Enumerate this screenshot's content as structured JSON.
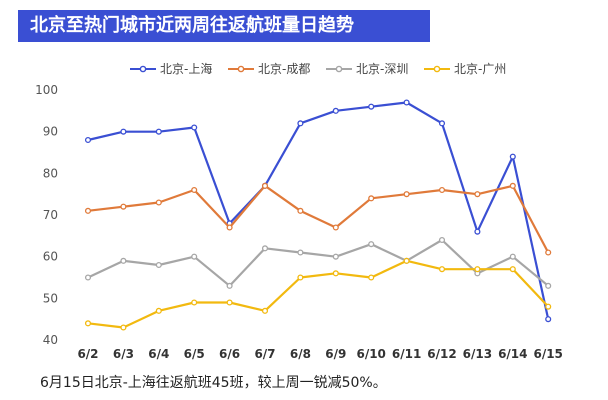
{
  "header": {
    "title": "北京至热门城市近两周往返航班量日趋势"
  },
  "chart_data": {
    "type": "line",
    "categories": [
      "6/2",
      "6/3",
      "6/4",
      "6/5",
      "6/6",
      "6/7",
      "6/8",
      "6/9",
      "6/10",
      "6/11",
      "6/12",
      "6/13",
      "6/14",
      "6/15"
    ],
    "ylim": [
      40,
      100
    ],
    "yticks": [
      40,
      50,
      60,
      70,
      80,
      90,
      100
    ],
    "grid": false,
    "legend_position": "top",
    "series": [
      {
        "name": "北京-上海",
        "color": "#3a4fd3",
        "values": [
          88,
          90,
          90,
          91,
          68,
          77,
          92,
          95,
          96,
          97,
          92,
          66,
          84,
          45
        ]
      },
      {
        "name": "北京-成都",
        "color": "#e07a3a",
        "values": [
          71,
          72,
          73,
          76,
          67,
          77,
          71,
          67,
          74,
          75,
          76,
          75,
          77,
          61
        ]
      },
      {
        "name": "北京-深圳",
        "color": "#a6a6a6",
        "values": [
          55,
          59,
          58,
          60,
          53,
          62,
          61,
          60,
          63,
          59,
          64,
          56,
          60,
          53
        ]
      },
      {
        "name": "北京-广州",
        "color": "#f2b90f",
        "values": [
          44,
          43,
          47,
          49,
          49,
          47,
          55,
          56,
          55,
          59,
          57,
          57,
          57,
          48
        ]
      }
    ]
  },
  "footer": {
    "caption": "6月15日北京-上海往返航班45班，较上周一锐减50%。"
  }
}
